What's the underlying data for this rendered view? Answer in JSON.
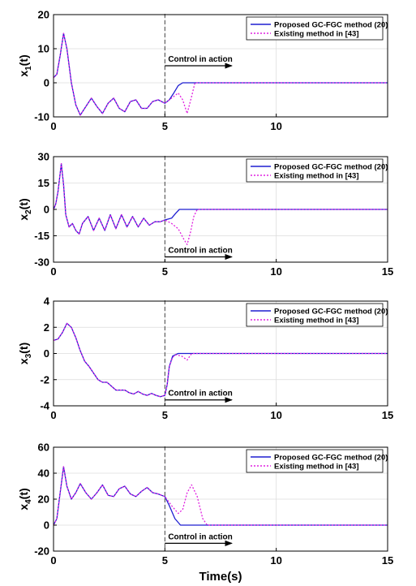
{
  "figure": {
    "xlabel": "Time(s)",
    "series_styles": [
      {
        "color": "#1f1fd1",
        "dash": "none"
      },
      {
        "color": "#e020e0",
        "dash": "2,2"
      }
    ]
  },
  "chart_data": [
    {
      "type": "line",
      "ylabel_main": "x",
      "ylabel_sub": "1",
      "ylabel_tail": "(t)",
      "xlim": [
        0,
        15
      ],
      "ylim": [
        -10,
        20
      ],
      "xticks": [
        0,
        5,
        10
      ],
      "xtick_labels": [
        "0",
        "5",
        "10"
      ],
      "yticks": [
        -10,
        0,
        10,
        20
      ],
      "ytick_labels": [
        "-10",
        "0",
        "10",
        "20"
      ],
      "grid": true,
      "legend_position": "top-right",
      "annotation": {
        "text": "Control in action",
        "y": 5,
        "arrow_from_x": 5,
        "arrow_to_x": 8
      },
      "vline_x": 5,
      "series": [
        {
          "name": "Proposed  GC-FGC method (20)",
          "x": [
            0,
            0.15,
            0.3,
            0.45,
            0.6,
            0.8,
            1.0,
            1.2,
            1.45,
            1.7,
            1.95,
            2.2,
            2.45,
            2.7,
            2.95,
            3.2,
            3.45,
            3.7,
            3.95,
            4.2,
            4.45,
            4.7,
            5.0,
            5.2,
            5.4,
            5.6,
            5.8,
            15
          ],
          "y": [
            1.5,
            2.5,
            8,
            14.5,
            10,
            0,
            -6.5,
            -9.5,
            -7,
            -4.5,
            -7,
            -9,
            -6,
            -4.5,
            -7.5,
            -8.5,
            -5.5,
            -5,
            -7.5,
            -7.5,
            -5.5,
            -5,
            -6,
            -5,
            -3,
            -0.8,
            0,
            0
          ]
        },
        {
          "name": "Existing method in [43]",
          "x": [
            0,
            0.15,
            0.3,
            0.45,
            0.6,
            0.8,
            1.0,
            1.2,
            1.45,
            1.7,
            1.95,
            2.2,
            2.45,
            2.7,
            2.95,
            3.2,
            3.45,
            3.7,
            3.95,
            4.2,
            4.45,
            4.7,
            5.0,
            5.3,
            5.6,
            5.8,
            6.0,
            6.2,
            6.35,
            15
          ],
          "y": [
            1.5,
            2.5,
            8,
            14.5,
            10,
            0,
            -6.5,
            -9.5,
            -7,
            -4.5,
            -7,
            -9,
            -6,
            -4.5,
            -7.5,
            -8.5,
            -5.5,
            -5,
            -7.5,
            -7.5,
            -5.5,
            -5,
            -6,
            -4.5,
            -3,
            -5,
            -9,
            -4,
            0,
            0
          ]
        }
      ]
    },
    {
      "type": "line",
      "ylabel_main": "x",
      "ylabel_sub": "2",
      "ylabel_tail": "(t)",
      "xlim": [
        0,
        15
      ],
      "ylim": [
        -30,
        30
      ],
      "xticks": [
        0,
        5,
        10,
        15
      ],
      "xtick_labels": [
        "0",
        "5",
        "10",
        "15"
      ],
      "yticks": [
        -30,
        -15,
        0,
        15,
        30
      ],
      "ytick_labels": [
        "-30",
        "-15",
        "0",
        "15",
        "30"
      ],
      "grid": true,
      "legend_position": "top-right",
      "annotation": {
        "text": "Control in action",
        "y": -27,
        "arrow_from_x": 5,
        "arrow_to_x": 8
      },
      "vline_x": 5,
      "series": [
        {
          "name": "Proposed  GC-FGC method (20)",
          "x": [
            0,
            0.1,
            0.2,
            0.35,
            0.45,
            0.55,
            0.7,
            0.85,
            1.0,
            1.15,
            1.3,
            1.55,
            1.8,
            2.05,
            2.3,
            2.55,
            2.8,
            3.05,
            3.3,
            3.55,
            3.8,
            4.05,
            4.3,
            4.55,
            4.8,
            5.0,
            5.3,
            5.5,
            5.65,
            15
          ],
          "y": [
            0,
            3,
            10,
            26,
            14,
            -3,
            -10,
            -8,
            -12,
            -14,
            -8,
            -4,
            -12,
            -5,
            -12,
            -3,
            -11,
            -3,
            -10,
            -4,
            -10,
            -5,
            -9,
            -7,
            -7,
            -6,
            -5,
            -2,
            0,
            0
          ]
        },
        {
          "name": "Existing method in [43]",
          "x": [
            0,
            0.1,
            0.2,
            0.35,
            0.45,
            0.55,
            0.7,
            0.85,
            1.0,
            1.15,
            1.3,
            1.55,
            1.8,
            2.05,
            2.3,
            2.55,
            2.8,
            3.05,
            3.3,
            3.55,
            3.8,
            4.05,
            4.3,
            4.55,
            4.8,
            5.0,
            5.3,
            5.6,
            5.85,
            6.0,
            6.15,
            6.3,
            6.45,
            15
          ],
          "y": [
            0,
            3,
            10,
            26,
            14,
            -3,
            -10,
            -8,
            -12,
            -14,
            -8,
            -4,
            -12,
            -5,
            -12,
            -3,
            -11,
            -3,
            -10,
            -4,
            -10,
            -5,
            -9,
            -7,
            -7,
            -6,
            -8,
            -11,
            -17,
            -20,
            -13,
            -4,
            0,
            0
          ]
        }
      ]
    },
    {
      "type": "line",
      "ylabel_main": "x",
      "ylabel_sub": "3",
      "ylabel_tail": "(t)",
      "xlim": [
        0,
        15
      ],
      "ylim": [
        -4,
        4
      ],
      "xticks": [
        0,
        5,
        10,
        15
      ],
      "xtick_labels": [
        "0",
        "5",
        "10",
        "15"
      ],
      "yticks": [
        -4,
        -2,
        0,
        2,
        4
      ],
      "ytick_labels": [
        "-4",
        "-2",
        "0",
        "2",
        "4"
      ],
      "grid": true,
      "legend_position": "top-right",
      "annotation": {
        "text": "Control in action",
        "y": -3.55,
        "arrow_from_x": 5,
        "arrow_to_x": 8
      },
      "vline_x": 5,
      "series": [
        {
          "name": "Proposed  GC-FGC method (20)",
          "x": [
            0,
            0.2,
            0.4,
            0.6,
            0.8,
            1.0,
            1.2,
            1.4,
            1.6,
            1.8,
            2.0,
            2.2,
            2.4,
            2.6,
            2.8,
            3.0,
            3.2,
            3.4,
            3.6,
            3.8,
            4.0,
            4.2,
            4.4,
            4.6,
            4.8,
            5.0,
            5.1,
            5.2,
            5.35,
            5.6,
            15
          ],
          "y": [
            1.0,
            1.1,
            1.6,
            2.3,
            2.0,
            1.2,
            0.2,
            -0.6,
            -1.0,
            -1.5,
            -2.0,
            -2.2,
            -2.2,
            -2.5,
            -2.8,
            -2.8,
            -2.8,
            -3.0,
            -3.1,
            -2.9,
            -3.1,
            -3.2,
            -3.05,
            -3.2,
            -3.3,
            -3.2,
            -2.4,
            -1.0,
            -0.2,
            0,
            0
          ]
        },
        {
          "name": "Existing method in [43]",
          "x": [
            0,
            0.2,
            0.4,
            0.6,
            0.8,
            1.0,
            1.2,
            1.4,
            1.6,
            1.8,
            2.0,
            2.2,
            2.4,
            2.6,
            2.8,
            3.0,
            3.2,
            3.4,
            3.6,
            3.8,
            4.0,
            4.2,
            4.4,
            4.6,
            4.8,
            5.0,
            5.1,
            5.2,
            5.35,
            5.5,
            5.75,
            6.0,
            6.2,
            15
          ],
          "y": [
            1.0,
            1.1,
            1.6,
            2.3,
            2.0,
            1.2,
            0.2,
            -0.6,
            -1.0,
            -1.5,
            -2.0,
            -2.2,
            -2.2,
            -2.5,
            -2.8,
            -2.8,
            -2.8,
            -3.0,
            -3.1,
            -2.9,
            -3.1,
            -3.2,
            -3.05,
            -3.2,
            -3.3,
            -3.2,
            -2.4,
            -1.0,
            -0.3,
            -0.1,
            -0.2,
            -0.5,
            0,
            0
          ]
        }
      ]
    },
    {
      "type": "line",
      "ylabel_main": "x",
      "ylabel_sub": "4",
      "ylabel_tail": "(t)",
      "xlim": [
        0,
        15
      ],
      "ylim": [
        -20,
        60
      ],
      "xticks": [
        0,
        5,
        10,
        15
      ],
      "xtick_labels": [
        "0",
        "5",
        "10",
        "15"
      ],
      "yticks": [
        -20,
        0,
        20,
        40,
        60
      ],
      "ytick_labels": [
        "-20",
        "0",
        "20",
        "40",
        "60"
      ],
      "grid": true,
      "legend_position": "top-right",
      "annotation": {
        "text": "Control in action",
        "y": -14,
        "arrow_from_x": 5,
        "arrow_to_x": 8
      },
      "vline_x": 5,
      "series": [
        {
          "name": "Proposed  GC-FGC method (20)",
          "x": [
            0,
            0.15,
            0.3,
            0.45,
            0.6,
            0.8,
            1.0,
            1.2,
            1.45,
            1.7,
            1.95,
            2.2,
            2.45,
            2.7,
            2.95,
            3.2,
            3.45,
            3.7,
            3.95,
            4.2,
            4.45,
            4.7,
            5.0,
            5.2,
            5.45,
            5.7,
            15
          ],
          "y": [
            0,
            5,
            25,
            45,
            30,
            20,
            25,
            32,
            25,
            20,
            25,
            31,
            23,
            22,
            28,
            30,
            24,
            22,
            26,
            29,
            25,
            24,
            22,
            15,
            5,
            0,
            0
          ]
        },
        {
          "name": "Existing method in [43]",
          "x": [
            0,
            0.15,
            0.3,
            0.45,
            0.6,
            0.8,
            1.0,
            1.2,
            1.45,
            1.7,
            1.95,
            2.2,
            2.45,
            2.7,
            2.95,
            3.2,
            3.45,
            3.7,
            3.95,
            4.2,
            4.45,
            4.7,
            5.0,
            5.3,
            5.6,
            5.8,
            6.0,
            6.2,
            6.45,
            6.7,
            6.9,
            15
          ],
          "y": [
            0,
            5,
            25,
            45,
            30,
            20,
            25,
            32,
            25,
            20,
            25,
            31,
            23,
            22,
            28,
            30,
            24,
            22,
            26,
            29,
            25,
            24,
            22,
            15,
            9,
            12,
            25,
            31,
            22,
            5,
            0,
            0
          ]
        }
      ]
    }
  ]
}
